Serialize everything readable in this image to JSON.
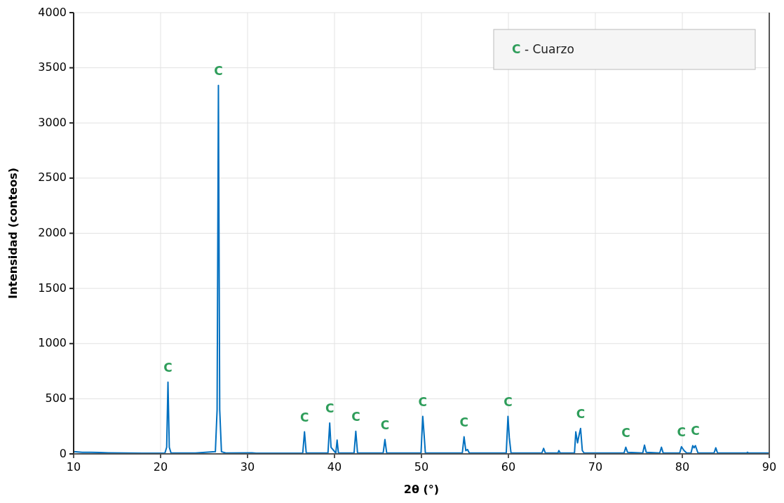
{
  "chart_data": {
    "type": "line",
    "xlabel": "2θ (°)",
    "ylabel": "Intensidad (conteos)",
    "xlim": [
      10,
      90
    ],
    "xticks": [
      10,
      20,
      30,
      40,
      50,
      60,
      70,
      80,
      90
    ],
    "ylim": [
      0,
      4000
    ],
    "yticks": [
      0,
      500,
      1000,
      1500,
      2000,
      2500,
      3000,
      3500,
      4000
    ],
    "grid": true,
    "marker": "none",
    "line_style": "solid",
    "x": [
      10,
      11,
      12,
      13,
      14,
      16,
      18,
      20.5,
      20.7,
      20.85,
      21.0,
      21.2,
      24,
      26.3,
      26.5,
      26.65,
      26.8,
      27.0,
      27.5,
      30.5,
      31,
      36.35,
      36.55,
      36.75,
      39.25,
      39.45,
      39.6,
      40.15,
      40.3,
      40.45,
      42.25,
      42.45,
      42.65,
      45.6,
      45.8,
      46.0,
      49.95,
      50.15,
      50.3,
      50.45,
      54.7,
      54.9,
      55.1,
      55.3,
      55.5,
      59.75,
      59.95,
      60.1,
      60.3,
      63.85,
      64.05,
      64.25,
      65.7,
      65.8,
      65.95,
      67.6,
      67.75,
      67.95,
      68.15,
      68.3,
      68.5,
      68.7,
      73.3,
      73.5,
      73.7,
      75.45,
      75.65,
      75.85,
      77.4,
      77.6,
      77.8,
      79.7,
      79.9,
      80.2,
      80.5,
      81.0,
      81.2,
      81.35,
      81.5,
      81.8,
      83.65,
      83.85,
      84.05,
      87.4,
      87.5,
      87.6,
      90
    ],
    "series": [
      {
        "color": "#0070c0",
        "values": [
          20,
          15,
          14,
          12,
          10,
          8,
          7,
          8,
          60,
          650,
          60,
          8,
          8,
          20,
          400,
          3340,
          400,
          20,
          8,
          10,
          6,
          8,
          200,
          8,
          8,
          280,
          60,
          8,
          125,
          8,
          8,
          205,
          8,
          8,
          130,
          8,
          8,
          340,
          180,
          8,
          8,
          155,
          30,
          40,
          8,
          8,
          340,
          150,
          8,
          8,
          50,
          8,
          8,
          30,
          8,
          8,
          200,
          100,
          180,
          230,
          30,
          8,
          8,
          60,
          15,
          8,
          80,
          15,
          8,
          60,
          8,
          8,
          65,
          30,
          8,
          8,
          75,
          55,
          75,
          8,
          8,
          55,
          8,
          8,
          15,
          8,
          8
        ]
      }
    ],
    "annotations": [
      "C - Cuarzo",
      {
        "text": "C",
        "x": 20.85,
        "y": 650
      },
      {
        "text": "C",
        "x": 26.65,
        "y": 3340
      },
      {
        "text": "C",
        "x": 36.55,
        "y": 200
      },
      {
        "text": "C",
        "x": 39.45,
        "y": 280
      },
      {
        "text": "C",
        "x": 42.45,
        "y": 205
      },
      {
        "text": "C",
        "x": 45.8,
        "y": 130
      },
      {
        "text": "C",
        "x": 50.15,
        "y": 340
      },
      {
        "text": "C",
        "x": 54.9,
        "y": 155
      },
      {
        "text": "C",
        "x": 59.95,
        "y": 340
      },
      {
        "text": "C",
        "x": 68.3,
        "y": 230
      },
      {
        "text": "C",
        "x": 73.5,
        "y": 60
      },
      {
        "text": "C",
        "x": 79.9,
        "y": 65
      },
      {
        "text": "C",
        "x": 81.5,
        "y": 75
      }
    ]
  }
}
